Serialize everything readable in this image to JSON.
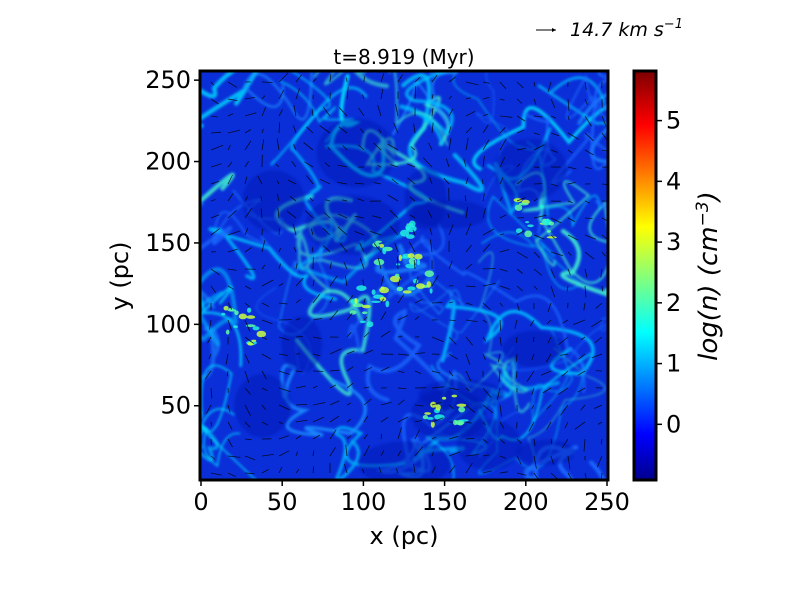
{
  "chart_data": {
    "type": "heatmap",
    "title": "t=8.919 (Myr)",
    "xlabel": "x (pc)",
    "ylabel": "y (pc)",
    "xlim": [
      0,
      250
    ],
    "ylim": [
      5,
      255
    ],
    "xticks": [
      0,
      50,
      100,
      150,
      200,
      250
    ],
    "yticks": [
      50,
      100,
      150,
      200,
      250
    ],
    "xtick_labels": [
      "0",
      "50",
      "100",
      "150",
      "200",
      "250"
    ],
    "ytick_labels": [
      "50",
      "100",
      "150",
      "200",
      "250"
    ],
    "colormap": "jet",
    "colorbar": {
      "label_prefix": "log(n) (cm",
      "label_exponent": "−3",
      "label_suffix": ")",
      "vmin": -0.9,
      "vmax": 5.8,
      "ticks": [
        0,
        1,
        2,
        3,
        4,
        5
      ],
      "tick_labels": [
        "0",
        "1",
        "2",
        "3",
        "4",
        "5"
      ]
    },
    "quiver_reference": {
      "value": 14.7,
      "label_main": "14.7 km s",
      "label_exponent": "−1"
    },
    "overlay": "velocity vector field (arrows)",
    "dense_regions": [
      {
        "x": 120,
        "y": 150
      },
      {
        "x": 105,
        "y": 110
      },
      {
        "x": 130,
        "y": 130
      },
      {
        "x": 150,
        "y": 45
      },
      {
        "x": 205,
        "y": 165
      },
      {
        "x": 25,
        "y": 100
      }
    ]
  }
}
